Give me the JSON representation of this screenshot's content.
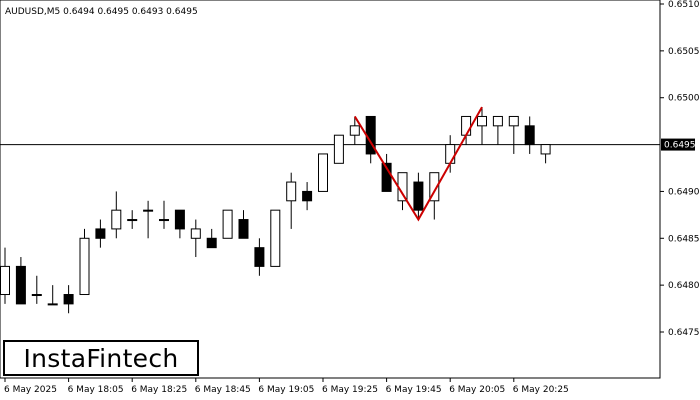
{
  "chart_data": {
    "type": "candlestick",
    "symbol_line": "AUDUSD,M5  0.6494 0.6495 0.6493 0.6495",
    "ylim": [
      0.647,
      0.651
    ],
    "y_ticks": [
      "0.6510",
      "0.6505",
      "0.6500",
      "0.6495",
      "0.6490",
      "0.6485",
      "0.6480",
      "0.6475"
    ],
    "current_price": "0.6495",
    "x_tick_labels": [
      "6 May 2025",
      "6 May 18:05",
      "6 May 18:25",
      "6 May 18:45",
      "6 May 19:05",
      "6 May 19:25",
      "6 May 19:45",
      "6 May 20:05",
      "6 May 20:25"
    ],
    "candles": [
      {
        "o": 0.6479,
        "h": 0.6484,
        "l": 0.6478,
        "c": 0.6482
      },
      {
        "o": 0.6482,
        "h": 0.6483,
        "l": 0.6478,
        "c": 0.6478
      },
      {
        "o": 0.6479,
        "h": 0.6481,
        "l": 0.6478,
        "c": 0.6479
      },
      {
        "o": 0.6478,
        "h": 0.648,
        "l": 0.6478,
        "c": 0.6478
      },
      {
        "o": 0.6479,
        "h": 0.648,
        "l": 0.6477,
        "c": 0.6478
      },
      {
        "o": 0.6479,
        "h": 0.6486,
        "l": 0.6479,
        "c": 0.6485
      },
      {
        "o": 0.6486,
        "h": 0.6487,
        "l": 0.6484,
        "c": 0.6485
      },
      {
        "o": 0.6486,
        "h": 0.649,
        "l": 0.6485,
        "c": 0.6488
      },
      {
        "o": 0.6487,
        "h": 0.6488,
        "l": 0.6486,
        "c": 0.6487
      },
      {
        "o": 0.6488,
        "h": 0.6489,
        "l": 0.6485,
        "c": 0.6488
      },
      {
        "o": 0.6487,
        "h": 0.6489,
        "l": 0.6486,
        "c": 0.6487
      },
      {
        "o": 0.6488,
        "h": 0.6488,
        "l": 0.6485,
        "c": 0.6486
      },
      {
        "o": 0.6485,
        "h": 0.6487,
        "l": 0.6483,
        "c": 0.6486
      },
      {
        "o": 0.6485,
        "h": 0.6486,
        "l": 0.6484,
        "c": 0.6484
      },
      {
        "o": 0.6485,
        "h": 0.6488,
        "l": 0.6485,
        "c": 0.6488
      },
      {
        "o": 0.6487,
        "h": 0.6488,
        "l": 0.6485,
        "c": 0.6485
      },
      {
        "o": 0.6484,
        "h": 0.6485,
        "l": 0.6481,
        "c": 0.6482
      },
      {
        "o": 0.6482,
        "h": 0.6488,
        "l": 0.6482,
        "c": 0.6488
      },
      {
        "o": 0.6489,
        "h": 0.6492,
        "l": 0.6486,
        "c": 0.6491
      },
      {
        "o": 0.649,
        "h": 0.6491,
        "l": 0.6488,
        "c": 0.6489
      },
      {
        "o": 0.649,
        "h": 0.6494,
        "l": 0.649,
        "c": 0.6494
      },
      {
        "o": 0.6493,
        "h": 0.6496,
        "l": 0.6493,
        "c": 0.6496
      },
      {
        "o": 0.6496,
        "h": 0.6498,
        "l": 0.6495,
        "c": 0.6497
      },
      {
        "o": 0.6498,
        "h": 0.6498,
        "l": 0.6493,
        "c": 0.6494
      },
      {
        "o": 0.6493,
        "h": 0.6494,
        "l": 0.649,
        "c": 0.649
      },
      {
        "o": 0.6489,
        "h": 0.6492,
        "l": 0.6488,
        "c": 0.6492
      },
      {
        "o": 0.6491,
        "h": 0.6492,
        "l": 0.6487,
        "c": 0.6488
      },
      {
        "o": 0.6489,
        "h": 0.6492,
        "l": 0.6487,
        "c": 0.6492
      },
      {
        "o": 0.6493,
        "h": 0.6496,
        "l": 0.6492,
        "c": 0.6495
      },
      {
        "o": 0.6496,
        "h": 0.6498,
        "l": 0.6495,
        "c": 0.6498
      },
      {
        "o": 0.6497,
        "h": 0.6499,
        "l": 0.6495,
        "c": 0.6498
      },
      {
        "o": 0.6497,
        "h": 0.6498,
        "l": 0.6495,
        "c": 0.6498
      },
      {
        "o": 0.6497,
        "h": 0.6498,
        "l": 0.6494,
        "c": 0.6498
      },
      {
        "o": 0.6497,
        "h": 0.6498,
        "l": 0.6494,
        "c": 0.6495
      },
      {
        "o": 0.6494,
        "h": 0.6495,
        "l": 0.6493,
        "c": 0.6495
      }
    ],
    "pattern_line": [
      {
        "bar": 22,
        "price": 0.6498
      },
      {
        "bar": 26,
        "price": 0.6487
      },
      {
        "bar": 30,
        "price": 0.6499
      }
    ],
    "colors": {
      "pattern": "#cc0000",
      "bear": "#000000",
      "bull": "#ffffff",
      "outline": "#000000"
    }
  },
  "logo": {
    "text": "InstaFintech"
  }
}
